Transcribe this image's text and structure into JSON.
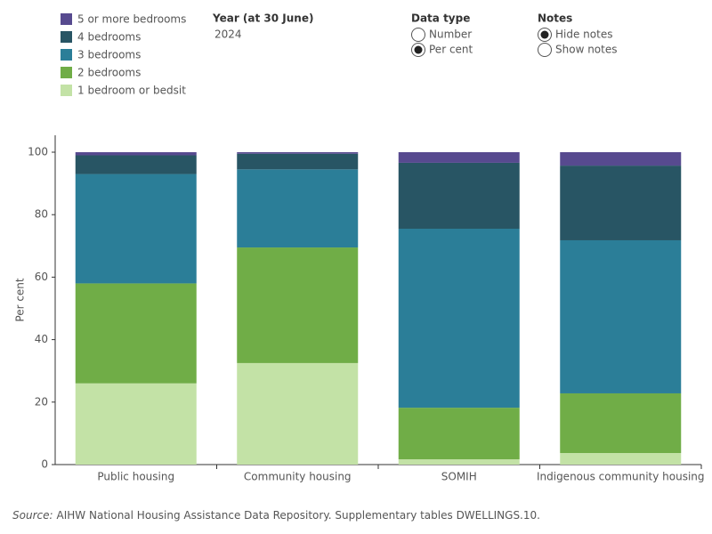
{
  "controls": {
    "year": {
      "label": "Year (at 30 June)",
      "value": "2024"
    },
    "data_type": {
      "label": "Data type",
      "options": [
        "Number",
        "Per cent"
      ],
      "selected": "Per cent"
    },
    "notes": {
      "label": "Notes",
      "options": [
        "Hide notes",
        "Show notes"
      ],
      "selected": "Hide notes"
    }
  },
  "chart_data": {
    "type": "bar",
    "stacked": true,
    "y_label": "Per cent",
    "categories": [
      "Public housing",
      "Community housing",
      "SOMIH",
      "Indigenous community housing"
    ],
    "series": [
      {
        "name": "1 bedroom or bedsit",
        "color": "#c3e2a6",
        "values": [
          26,
          32.5,
          1.7,
          3.7
        ]
      },
      {
        "name": "2 bedrooms",
        "color": "#70ad47",
        "values": [
          32,
          37,
          16.5,
          19.1
        ]
      },
      {
        "name": "3 bedrooms",
        "color": "#2b7e98",
        "values": [
          35,
          25,
          57.3,
          49
        ]
      },
      {
        "name": "4 bedrooms",
        "color": "#285564",
        "values": [
          6,
          5,
          21.1,
          23.9
        ]
      },
      {
        "name": "5 or more bedrooms",
        "color": "#574a8f",
        "values": [
          1,
          0.5,
          3.4,
          4.3
        ]
      }
    ],
    "ylim": [
      0,
      100
    ],
    "yticks": [
      0,
      20,
      40,
      60,
      80,
      100
    ],
    "grid": false
  },
  "source": {
    "label": "Source:",
    "text": "AIHW National Housing Assistance Data Repository. Supplementary tables DWELLINGS.10."
  }
}
